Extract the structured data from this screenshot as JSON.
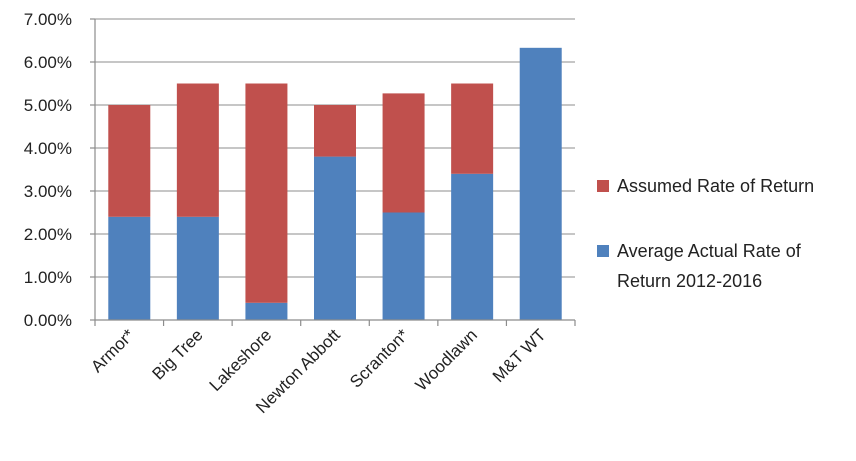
{
  "chart_data": {
    "type": "bar",
    "stacked": true,
    "categories": [
      "Armor*",
      "Big Tree",
      "Lakeshore",
      "Newton Abbott",
      "Scranton*",
      "Woodlawn",
      "M&T WT"
    ],
    "series": [
      {
        "name": "Average Actual Rate of Return 2012-2016",
        "color": "#4f81bd",
        "values": [
          2.4,
          2.4,
          0.4,
          3.8,
          2.5,
          3.4,
          6.33
        ]
      },
      {
        "name": "Assumed Rate of Return",
        "color": "#c0504d",
        "values": [
          2.6,
          3.1,
          5.1,
          1.2,
          2.77,
          2.1,
          0
        ]
      }
    ],
    "ylim": [
      0,
      7
    ],
    "y_ticks": [
      {
        "value": 0,
        "label": "0.00%"
      },
      {
        "value": 1,
        "label": "1.00%"
      },
      {
        "value": 2,
        "label": "2.00%"
      },
      {
        "value": 3,
        "label": "3.00%"
      },
      {
        "value": 4,
        "label": "4.00%"
      },
      {
        "value": 5,
        "label": "5.00%"
      },
      {
        "value": 6,
        "label": "6.00%"
      },
      {
        "value": 7,
        "label": "7.00%"
      }
    ],
    "grid": true,
    "legend": {
      "placement": "right",
      "entries": [
        {
          "label_lines": [
            "Assumed Rate of Return"
          ],
          "color": "#c0504d"
        },
        {
          "label_lines": [
            "Average Actual Rate of",
            "Return 2012-2016"
          ],
          "color": "#4f81bd"
        }
      ]
    },
    "title": "",
    "xlabel": "",
    "ylabel": ""
  }
}
